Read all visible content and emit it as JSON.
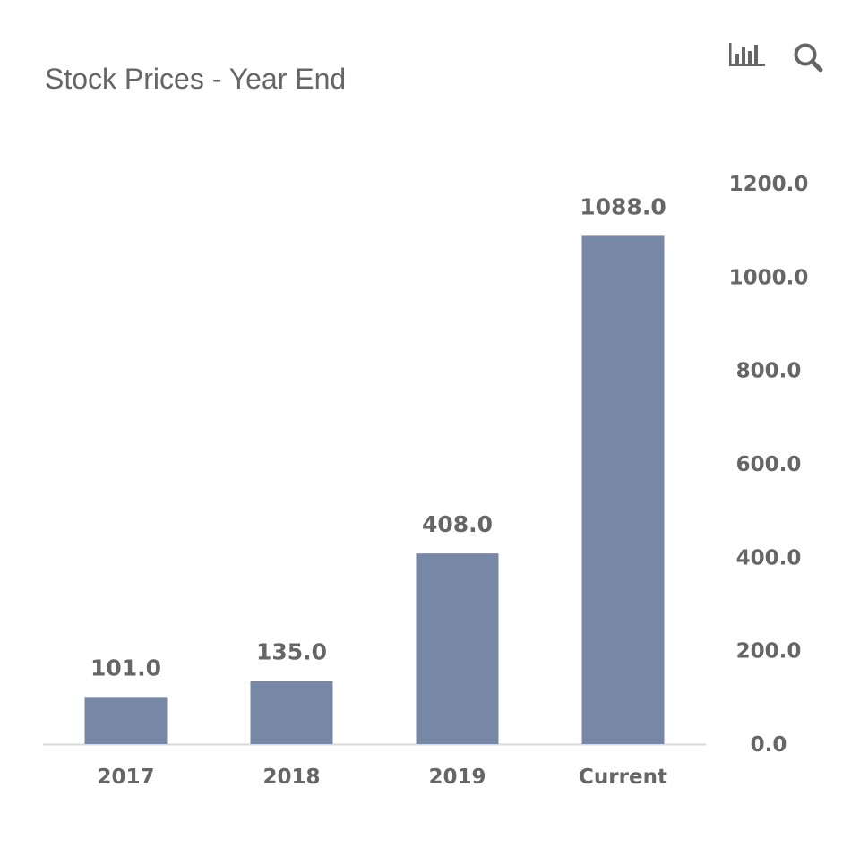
{
  "chart_data": {
    "type": "bar",
    "title": "Stock Prices - Year End",
    "categories": [
      "2017",
      "2018",
      "2019",
      "Current"
    ],
    "values": [
      101.0,
      135.0,
      408.0,
      1088.0
    ],
    "data_labels": [
      "101.0",
      "135.0",
      "408.0",
      "1088.0"
    ],
    "y_ticks": [
      0,
      200,
      400,
      600,
      800,
      1000,
      1200
    ],
    "y_tick_labels": [
      "0.0",
      "200.0",
      "400.0",
      "600.0",
      "800.0",
      "1000.0",
      "1200.0"
    ],
    "ylim": [
      0,
      1200
    ],
    "y_axis_position": "right",
    "grid": false,
    "legend": "none",
    "xlabel": "",
    "ylabel": ""
  },
  "colors": {
    "bar": "#7688a6",
    "title": "#666666",
    "tick_text": "#666666",
    "data_label": "#666666",
    "axis_line": "#d9d9d9",
    "icon": "#666666"
  },
  "toolbar": {
    "chart_type_icon": "bar-chart-icon",
    "search_icon": "magnifier-icon"
  }
}
